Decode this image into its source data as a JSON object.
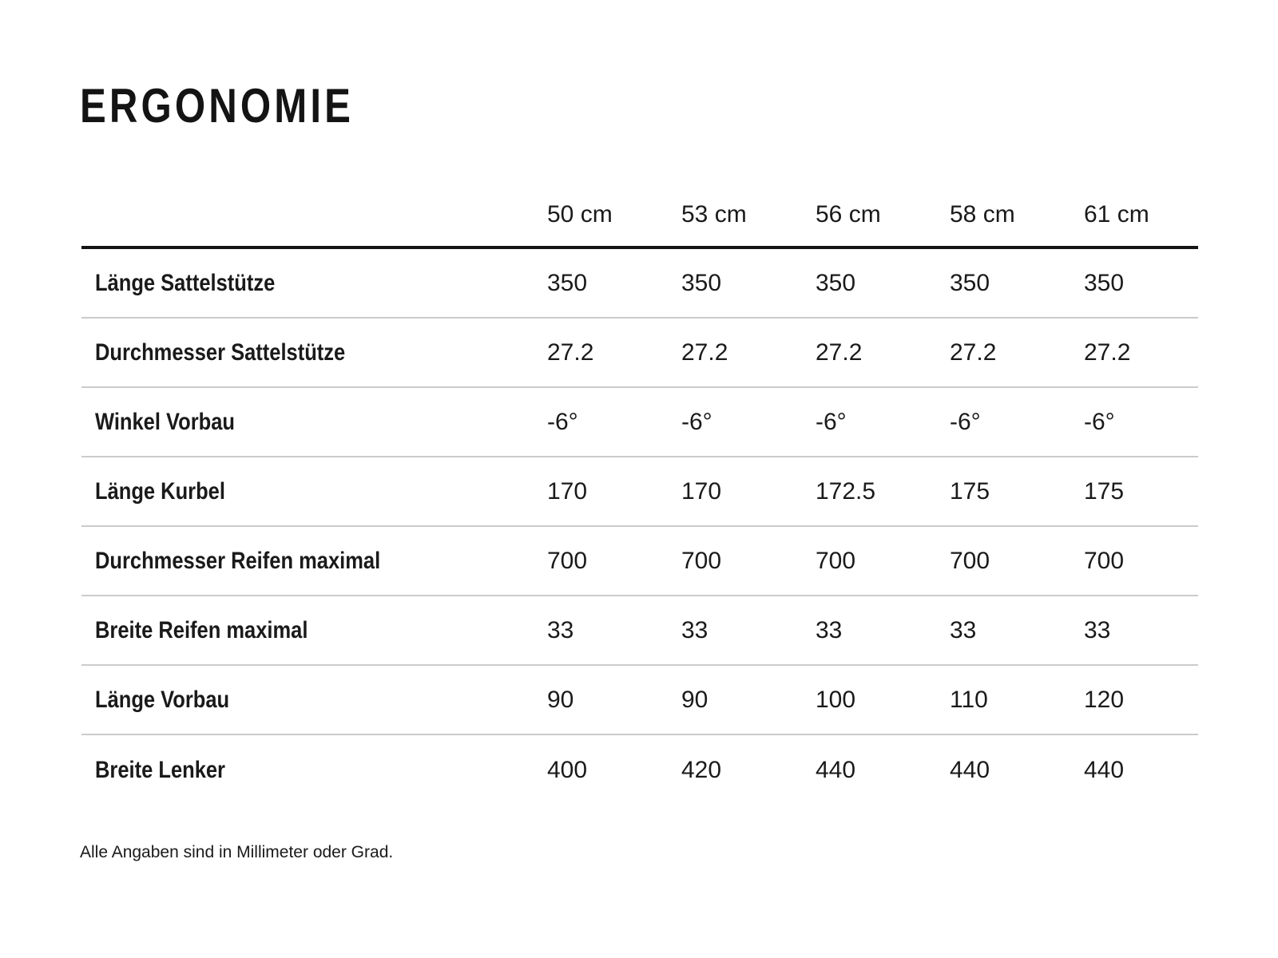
{
  "page": {
    "title": "ERGONOMIE",
    "footnote": "Alle Angaben sind in Millimeter oder Grad."
  },
  "colors": {
    "text": "#1a1a1a",
    "heavy_rule": "#141414",
    "light_rule": "#cbcbce",
    "background": "#ffffff"
  },
  "table": {
    "columns": [
      "50 cm",
      "53 cm",
      "56 cm",
      "58 cm",
      "61 cm"
    ],
    "rows": [
      {
        "label": "Länge Sattelstütze",
        "values": [
          "350",
          "350",
          "350",
          "350",
          "350"
        ]
      },
      {
        "label": "Durchmesser Sattelstütze",
        "values": [
          "27.2",
          "27.2",
          "27.2",
          "27.2",
          "27.2"
        ]
      },
      {
        "label": "Winkel Vorbau",
        "values": [
          "-6°",
          "-6°",
          "-6°",
          "-6°",
          "-6°"
        ]
      },
      {
        "label": "Länge Kurbel",
        "values": [
          "170",
          "170",
          "172.5",
          "175",
          "175"
        ]
      },
      {
        "label": "Durchmesser Reifen maximal",
        "values": [
          "700",
          "700",
          "700",
          "700",
          "700"
        ]
      },
      {
        "label": "Breite Reifen maximal",
        "values": [
          "33",
          "33",
          "33",
          "33",
          "33"
        ]
      },
      {
        "label": "Länge Vorbau",
        "values": [
          "90",
          "90",
          "100",
          "110",
          "120"
        ]
      },
      {
        "label": "Breite Lenker",
        "values": [
          "400",
          "420",
          "440",
          "440",
          "440"
        ]
      }
    ]
  }
}
